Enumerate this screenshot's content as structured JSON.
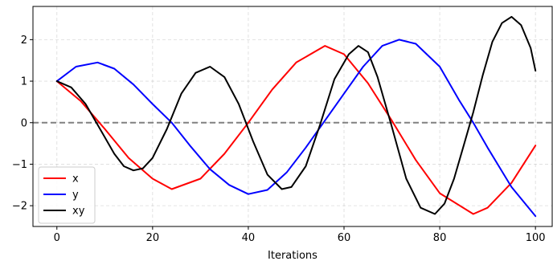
{
  "chart_data": {
    "type": "line",
    "title": "",
    "xlabel": "Iterations",
    "ylabel": "",
    "xlim": [
      -5,
      103.5
    ],
    "ylim": [
      -2.5,
      2.8
    ],
    "xticks": [
      0,
      20,
      40,
      60,
      80,
      100
    ],
    "yticks": [
      -2,
      -1,
      0,
      1,
      2
    ],
    "grid": true,
    "legend_position": "lower-left",
    "reference_line": {
      "y": 0,
      "color": "#808080",
      "style": "dashed"
    },
    "series": [
      {
        "name": "x",
        "color": "#ff0000",
        "x": [
          0,
          5,
          10,
          15,
          20,
          24,
          30,
          35,
          40,
          45,
          50,
          56,
          60,
          65,
          70,
          75,
          80,
          87,
          90,
          95,
          100
        ],
        "y": [
          1.0,
          0.52,
          -0.15,
          -0.85,
          -1.35,
          -1.6,
          -1.35,
          -0.75,
          0.0,
          0.8,
          1.45,
          1.85,
          1.65,
          0.95,
          0.05,
          -0.9,
          -1.7,
          -2.2,
          -2.05,
          -1.45,
          -0.55
        ]
      },
      {
        "name": "y",
        "color": "#0000ff",
        "x": [
          0,
          4,
          8.5,
          12,
          16,
          20,
          24,
          28,
          32,
          36,
          40,
          44,
          48,
          52,
          56,
          60,
          64,
          68,
          71.5,
          75,
          80,
          84,
          87,
          90,
          95,
          100
        ],
        "y": [
          1.0,
          1.35,
          1.45,
          1.3,
          0.92,
          0.45,
          0.0,
          -0.58,
          -1.12,
          -1.5,
          -1.72,
          -1.62,
          -1.2,
          -0.6,
          0.05,
          0.7,
          1.35,
          1.85,
          2.0,
          1.9,
          1.35,
          0.55,
          0.0,
          -0.6,
          -1.55,
          -2.25
        ]
      },
      {
        "name": "xy",
        "color": "#000000",
        "x": [
          0,
          3,
          6,
          9,
          12,
          14,
          16,
          18,
          20,
          23,
          26,
          29,
          32,
          35,
          38,
          41,
          44,
          47,
          49,
          52,
          55,
          58,
          61,
          63,
          65,
          67,
          70,
          73,
          76,
          79,
          81,
          83,
          85,
          87,
          89,
          91,
          93,
          95,
          97,
          99,
          100
        ],
        "y": [
          1.0,
          0.85,
          0.45,
          -0.15,
          -0.75,
          -1.05,
          -1.15,
          -1.1,
          -0.85,
          -0.15,
          0.7,
          1.2,
          1.35,
          1.1,
          0.45,
          -0.45,
          -1.25,
          -1.6,
          -1.55,
          -1.05,
          -0.05,
          1.05,
          1.65,
          1.85,
          1.7,
          1.1,
          -0.1,
          -1.35,
          -2.05,
          -2.2,
          -1.95,
          -1.35,
          -0.55,
          0.25,
          1.15,
          1.95,
          2.4,
          2.55,
          2.35,
          1.8,
          1.25
        ]
      }
    ]
  }
}
